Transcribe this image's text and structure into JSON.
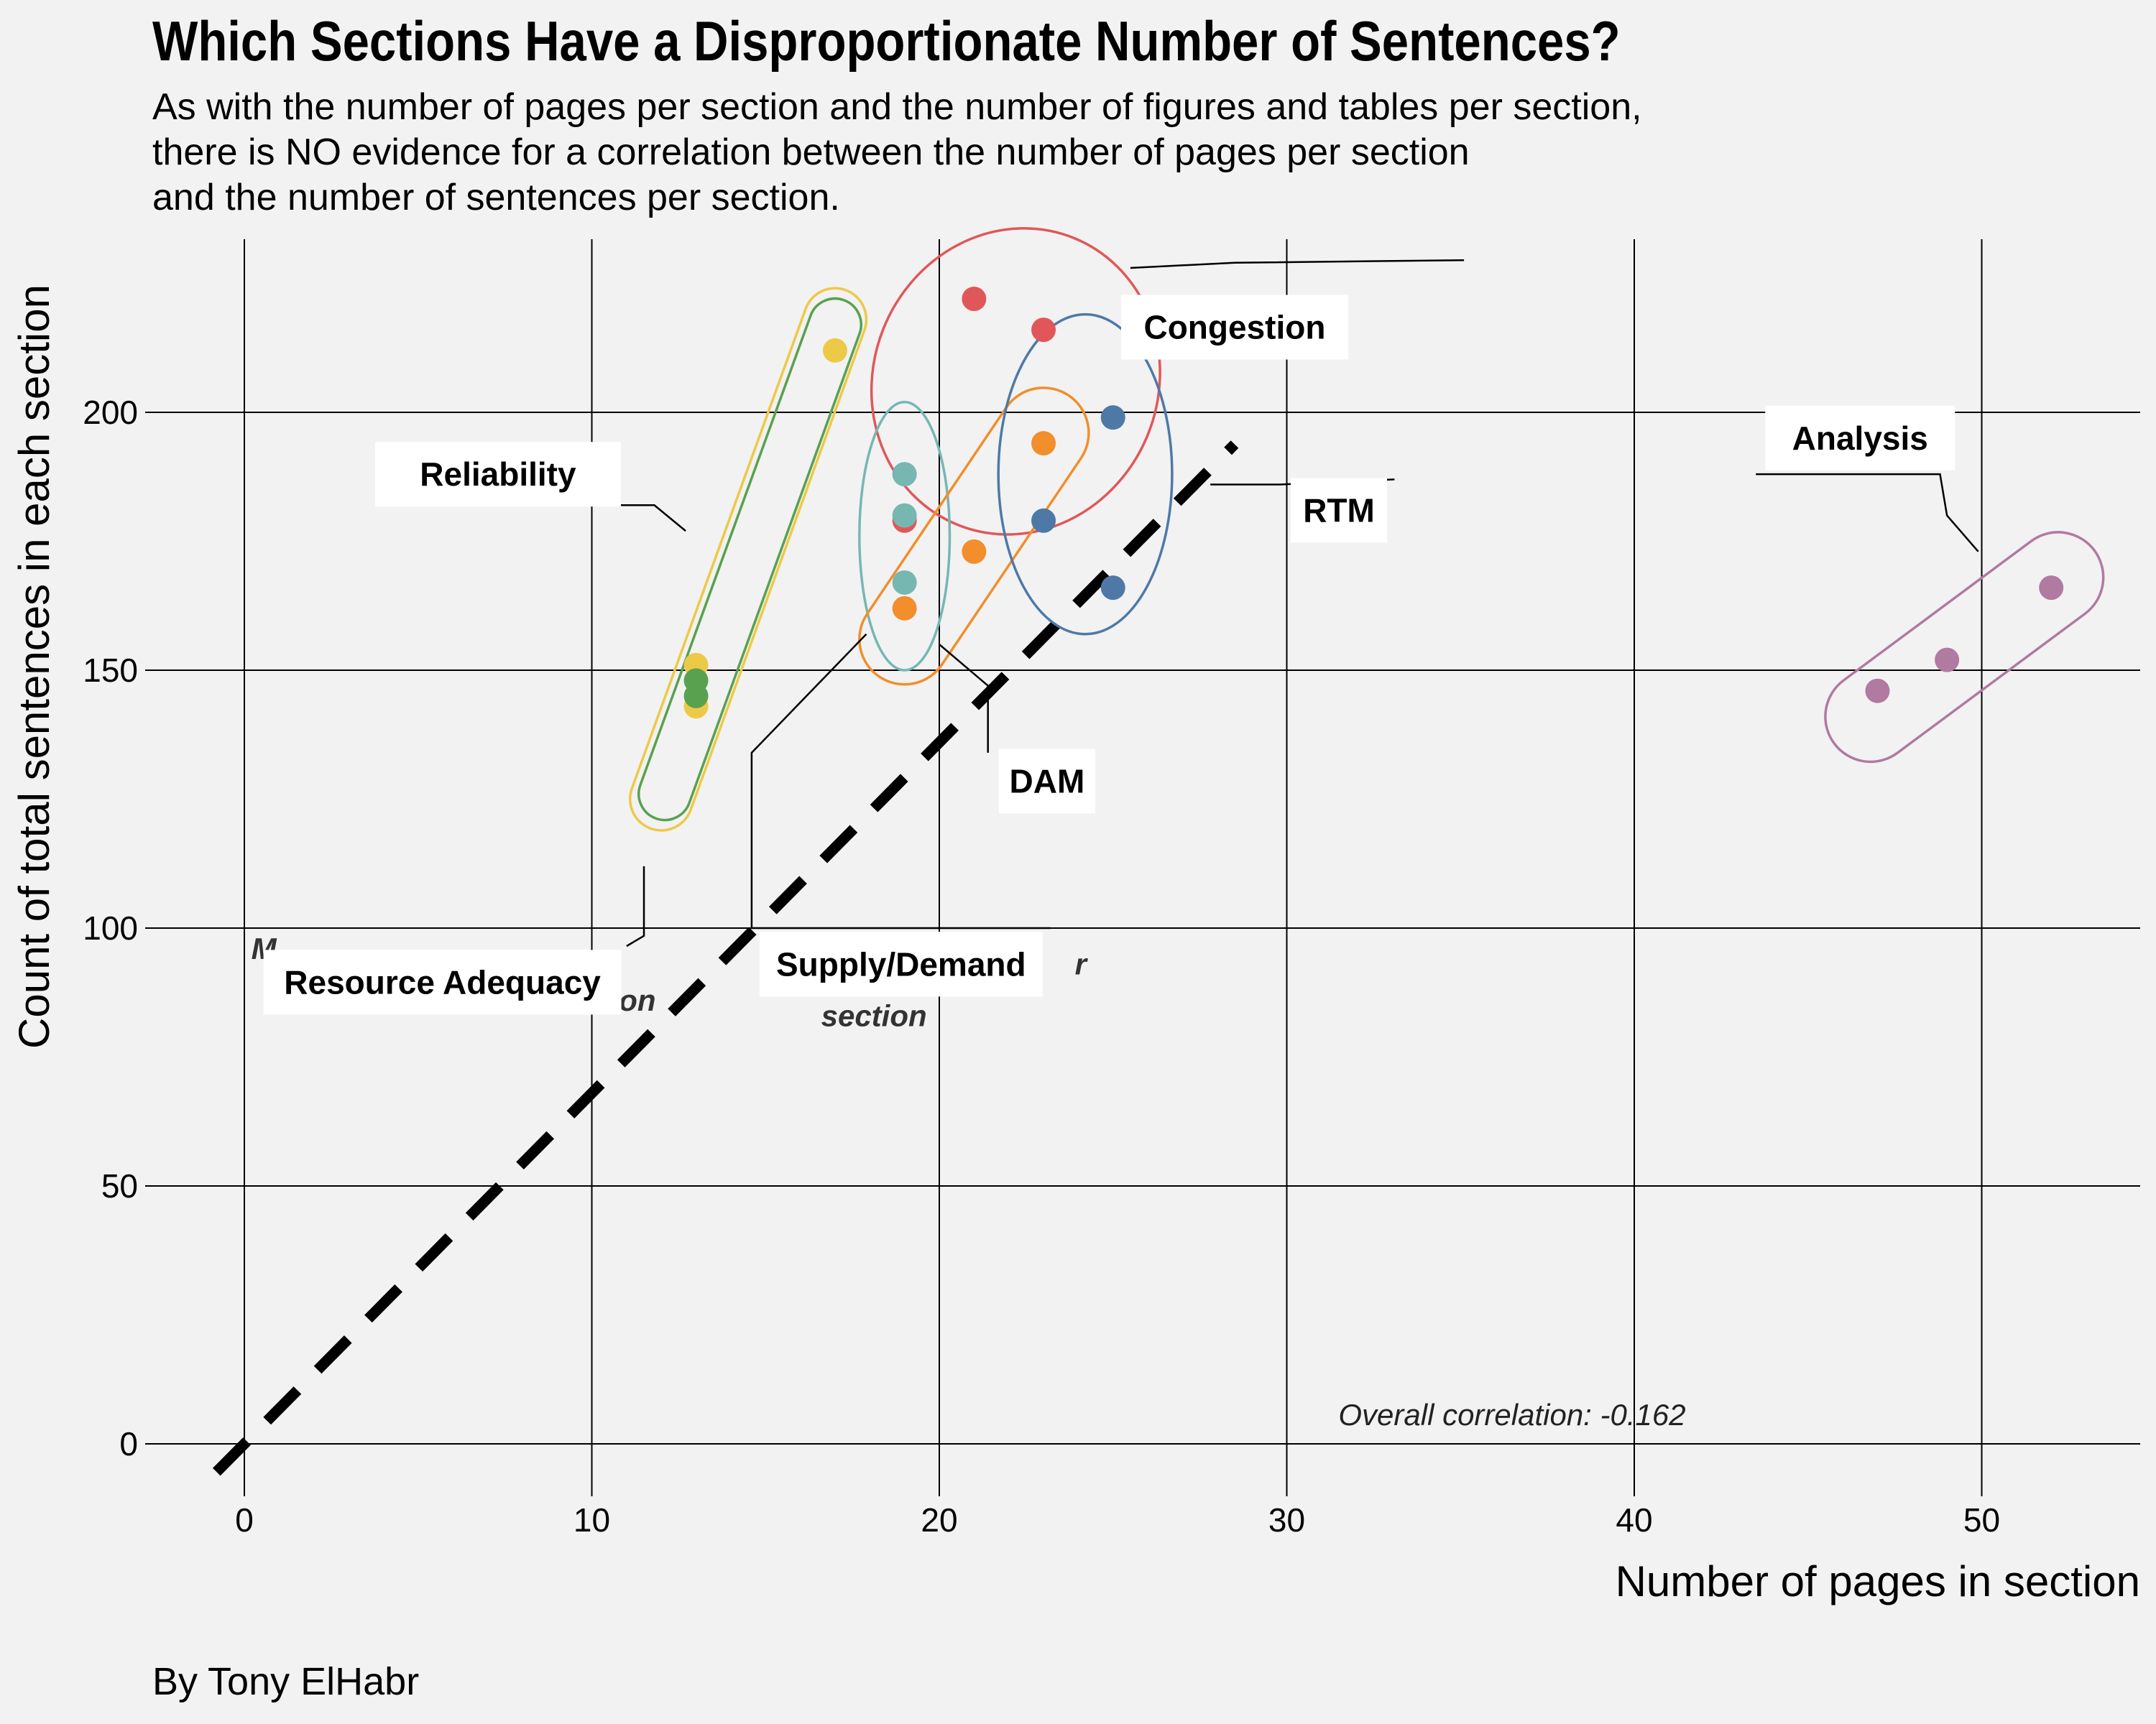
{
  "header": {
    "title": "Which Sections Have a Disproportionate Number of Sentences?",
    "subtitle_lines": [
      "As with the number of pages per section and the number of figures and tables per section,",
      "there is  NO evidence for a correlation between the number of pages per section",
      "and the number of sentences per section."
    ],
    "caption": "By Tony ElHabr"
  },
  "chart_data": {
    "type": "scatter",
    "title": "Which Sections Have a Disproportionate Number of Sentences?",
    "xlabel": "Number of pages in section",
    "ylabel": "Count of total sentences in each section",
    "xlim": [
      -2,
      55
    ],
    "ylim": [
      -5,
      233
    ],
    "x_ticks": [
      0,
      10,
      20,
      30,
      40,
      50
    ],
    "y_ticks": [
      0,
      50,
      100,
      150,
      200
    ],
    "grid": true,
    "legend": "none",
    "reference_line": {
      "slope": 6.8,
      "intercept": 0,
      "style": "dashed",
      "color": "#000000",
      "x_range": [
        -0.8,
        28.5
      ]
    },
    "correlation_note": "Overall correlation: -0.162",
    "series": [
      {
        "name": "Reliability",
        "color": "#edc948",
        "points": [
          [
            17,
            212
          ],
          [
            13,
            151
          ],
          [
            13,
            143
          ]
        ],
        "hull": {
          "p1": [
            12,
            125
          ],
          "p2": [
            17,
            218
          ],
          "halfwidth": 0.9
        }
      },
      {
        "name": "Resource Adequacy",
        "color": "#59a14f",
        "points": [
          [
            13,
            148
          ],
          [
            13,
            145
          ]
        ],
        "hull": {
          "p1": [
            12.1,
            126
          ],
          "p2": [
            17,
            217
          ],
          "halfwidth": 0.75
        }
      },
      {
        "name": "Congestion",
        "color": "#e15759",
        "points": [
          [
            21,
            222
          ],
          [
            23,
            216
          ],
          [
            19,
            179
          ]
        ],
        "hull": {
          "cx": 22.2,
          "cy": 206,
          "rx": 4.1,
          "ry": 30,
          "angle": 22
        }
      },
      {
        "name": "Supply/Demand",
        "color": "#76b7b2",
        "points": [
          [
            19,
            188
          ],
          [
            19,
            180
          ],
          [
            19,
            167
          ]
        ],
        "hull": {
          "cx": 19,
          "cy": 176,
          "rx": 1.3,
          "ry": 26,
          "angle": 0
        }
      },
      {
        "name": "DAM",
        "color": "#f28e2b",
        "points": [
          [
            23,
            194
          ],
          [
            21,
            173
          ],
          [
            19,
            162
          ]
        ],
        "hull": {
          "p1": [
            19,
            156
          ],
          "p2": [
            23,
            196
          ],
          "halfwidth": 1.3
        }
      },
      {
        "name": "RTM",
        "color": "#4e79a7",
        "points": [
          [
            25,
            199
          ],
          [
            23,
            179
          ],
          [
            25,
            166
          ]
        ],
        "hull": {
          "cx": 24.2,
          "cy": 188,
          "rx": 2.5,
          "ry": 31,
          "angle": 0
        }
      },
      {
        "name": "Analysis",
        "color": "#b07aa1",
        "points": [
          [
            47,
            146
          ],
          [
            49,
            152
          ],
          [
            52,
            166
          ]
        ],
        "hull": {
          "p1": [
            46.8,
            141
          ],
          "p2": [
            52.2,
            168
          ],
          "halfwidth": 1.3
        }
      }
    ],
    "annotations": [
      {
        "text": "Congestion",
        "box": [
          28.5,
          216.5
        ],
        "leader": [
          [
            25.5,
            228
          ],
          [
            28.5,
            229
          ],
          [
            35.1,
            229.5
          ]
        ]
      },
      {
        "text": "Reliability",
        "box": [
          7.3,
          188
        ],
        "leader": [
          [
            4.3,
            182
          ],
          [
            11.8,
            182
          ],
          [
            12.7,
            177
          ]
        ]
      },
      {
        "text": "RTM",
        "box": [
          31.5,
          181
        ],
        "leader": [
          [
            27.8,
            186
          ],
          [
            29.8,
            186
          ],
          [
            33.1,
            187
          ]
        ]
      },
      {
        "text": "Analysis",
        "box": [
          46.5,
          195
        ],
        "leader": [
          [
            43.5,
            188
          ],
          [
            48.8,
            188
          ],
          [
            49,
            180
          ],
          [
            49.9,
            173
          ]
        ]
      },
      {
        "text": "DAM",
        "box": [
          23.1,
          128.5
        ],
        "leader": [
          [
            20,
            155
          ],
          [
            21.4,
            147
          ],
          [
            21.4,
            134
          ]
        ]
      },
      {
        "text": "Supply/Demand",
        "box": [
          18.9,
          93
        ],
        "leader": [
          [
            17.9,
            157
          ],
          [
            14.6,
            134
          ],
          [
            14.6,
            100
          ],
          [
            23.2,
            100
          ]
        ]
      },
      {
        "text": "Resource Adequacy",
        "box": [
          5.7,
          89.5
        ],
        "leader": [
          [
            11.5,
            112
          ],
          [
            11.5,
            98.5
          ],
          [
            11,
            96.5
          ]
        ]
      }
    ],
    "partial_labels": [
      {
        "text": "M",
        "pos": [
          0.2,
          94
        ]
      },
      {
        "text": "section",
        "pos": [
          8.8,
          84
        ]
      },
      {
        "text": "r",
        "pos": [
          23.9,
          91
        ]
      },
      {
        "text": "section",
        "pos": [
          16.6,
          81
        ]
      }
    ]
  }
}
